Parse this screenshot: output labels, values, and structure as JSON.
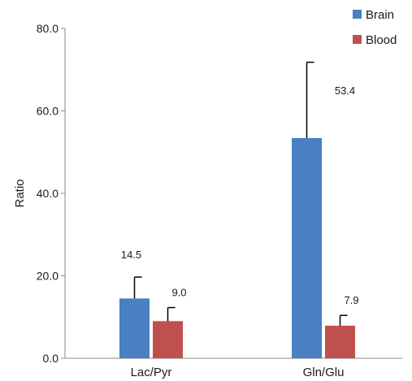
{
  "chart_data": {
    "type": "bar",
    "ylabel": "Ratio",
    "xlabel": "",
    "ylim": [
      0,
      80
    ],
    "yticks": [
      "0.0",
      "20.0",
      "40.0",
      "60.0",
      "80.0"
    ],
    "categories": [
      "Lac/Pyr",
      "Gln/Glu"
    ],
    "legend_position": "top-right",
    "grid": false,
    "series": [
      {
        "name": "Brain",
        "color": "#4a7fc1",
        "values": [
          14.5,
          53.4
        ],
        "errors": [
          5.2,
          18.4
        ],
        "labels": [
          "14.5",
          "53.4"
        ]
      },
      {
        "name": "Blood",
        "color": "#c0504d",
        "values": [
          9.0,
          7.9
        ],
        "errors": [
          3.3,
          2.5
        ],
        "labels": [
          "9.0",
          "7.9"
        ]
      }
    ]
  }
}
